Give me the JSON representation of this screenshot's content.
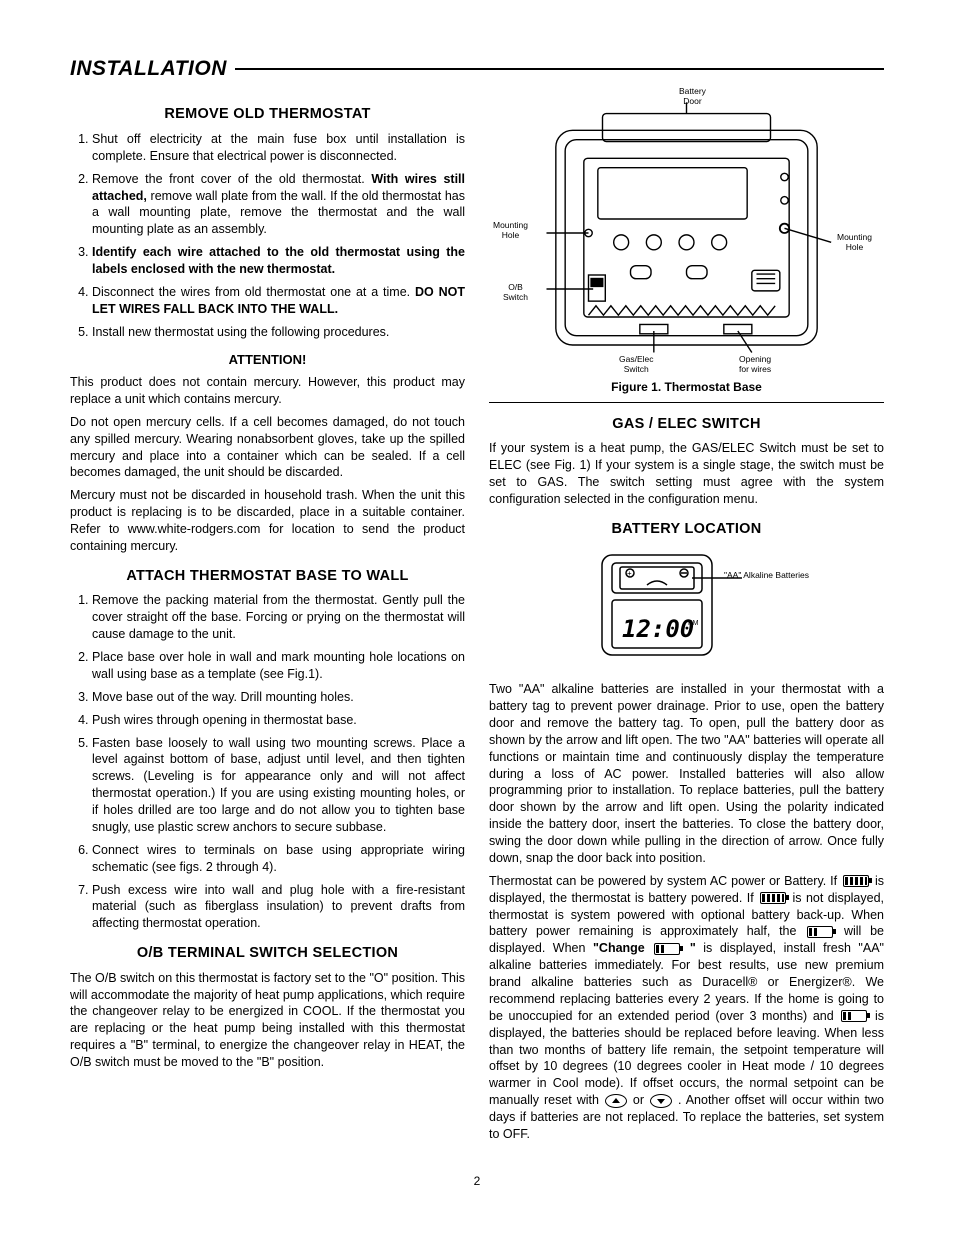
{
  "page_title": "INSTALLATION",
  "page_number": "2",
  "left": {
    "h_remove": "REMOVE OLD THERMOSTAT",
    "remove_items": [
      "Shut off electricity at the main fuse box until installation is complete. Ensure that electrical power is disconnected.",
      "Remove the front cover of the old thermostat. <b>With wires still attached,</b> remove wall plate from the wall. If the old thermostat has a wall mounting plate, remove the thermostat and the wall mounting plate as an assembly.",
      "<b>Identify each wire attached to the old thermostat using the labels enclosed with the new thermostat.</b>",
      "Disconnect the wires from old thermostat one at a time. <b>DO NOT LET WIRES FALL BACK INTO THE WALL.</b>",
      "Install new thermostat using the following procedures."
    ],
    "h_attention": "ATTENTION!",
    "attention_p1": "This product does not contain mercury. However, this product may replace a unit which contains mercury.",
    "attention_p2": "Do not open mercury cells. If a cell becomes damaged, do not touch any spilled mercury. Wearing nonabsorbent gloves, take up the spilled mercury and place into a container which can be sealed. If a cell becomes damaged, the unit should be discarded.",
    "attention_p3": "Mercury must not be discarded in household trash. When the unit this product is replacing is to be discarded, place in a suitable container. Refer to www.white-rodgers.com for location to send the product containing mercury.",
    "h_attach": "ATTACH THERMOSTAT BASE TO WALL",
    "attach_items": [
      "Remove the packing material from the thermostat. Gently pull the cover straight off the base. Forcing or prying on the thermostat will cause damage to the unit.",
      "Place base over hole in wall and mark mounting hole locations on wall using base as a template (see Fig.1).",
      "Move base out of the way. Drill mounting holes.",
      "Push wires through opening in thermostat base.",
      "Fasten base loosely to wall using two mounting screws. Place a level against bottom of base, adjust until level, and then tighten screws. (Leveling is for appearance only and will not affect thermostat operation.) If you are using existing mounting holes, or if holes drilled are too large and do not allow you to tighten base snugly, use plastic screw anchors to secure subbase.",
      "Connect wires to terminals on base using appropriate wiring schematic (see figs. 2 through 4).",
      "Push excess wire into wall and plug hole with a fire-resistant material (such as fiberglass insulation) to prevent drafts from affecting thermostat operation."
    ],
    "h_ob": "O/B TERMINAL SWITCH SELECTION",
    "ob_p": "The O/B switch on this thermostat is factory set to the \"O\" position. This will accommodate the majority of heat pump applications, which require the changeover relay to be energized in COOL. If the thermostat you are replacing or the heat pump being installed with this thermostat requires a \"B\" terminal, to energize the changeover relay in HEAT, the O/B switch must be moved to the \"B\" position."
  },
  "right": {
    "fig1_labels": {
      "battery_door": "Battery\nDoor",
      "mounting_hole_l": "Mounting\nHole",
      "mounting_hole_r": "Mounting\nHole",
      "ob_switch": "O/B\nSwitch",
      "gas_elec": "Gas/Elec\nSwitch",
      "opening": "Opening\nfor wires"
    },
    "fig1_caption": "Figure 1. Thermostat Base",
    "h_gas": "GAS / ELEC SWITCH",
    "gas_p": "If your system is a heat pump, the GAS/ELEC Switch must be set to ELEC (see Fig. 1) If your system is a single stage, the switch must be set to GAS. The switch setting must agree with the system configuration selected in the configuration menu.",
    "h_battery": "BATTERY LOCATION",
    "fig2_label_aa": "\"AA\" Alkaline Batteries",
    "battery_p1": "Two \"AA\" alkaline batteries are installed in your thermostat with a battery tag to prevent power drainage. Prior to use, open the battery door and remove the battery tag. To open, pull the battery door as shown by the arrow and lift open. The two \"AA\" batteries will operate all functions or maintain time and continuously display the temperature during a loss of AC power. Installed batteries will also allow programming prior to installation. To replace batteries, pull the battery door shown by the arrow and lift open. Using the polarity indicated inside the battery door, insert the batteries. To close the battery door, swing the door down while pulling in the direction of arrow. Once fully down, snap the door back into position.",
    "battery_p2_a": "Thermostat can be powered by system AC power or Battery. If ",
    "battery_p2_b": " is displayed, the thermostat is battery powered. If ",
    "battery_p2_c": " is not displayed, thermostat is system powered with optional battery back-up. When battery power remaining is approximately half, the ",
    "battery_p2_d": " will be displayed. When ",
    "battery_p2_change": "\"Change ",
    "battery_p2_e": "\"",
    "battery_p2_f": " is displayed, install fresh \"AA\" alkaline batteries immediately. For best results, use new premium brand alkaline batteries such as Duracell® or Energizer®. We recommend replacing batteries every 2 years. If the home is going to be unoccupied for an extended period (over 3 months) and ",
    "battery_p2_g": " is displayed, the batteries should be replaced before leaving. When less than two months of battery life remain, the setpoint temperature will offset by 10 degrees (10 degrees cooler in Heat mode / 10 degrees warmer in Cool mode). If offset occurs, the normal setpoint can be manually reset with ",
    "battery_p2_h": " or ",
    "battery_p2_i": ". Another offset will occur within two days if batteries are not replaced. To replace the batteries, set system to OFF."
  }
}
